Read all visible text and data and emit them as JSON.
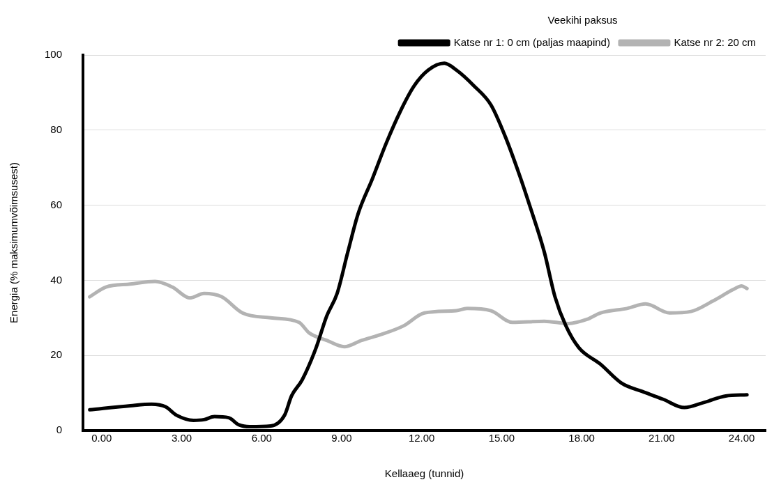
{
  "chart_data": {
    "type": "line",
    "xlabel": "Kellaaeg (tunnid)",
    "ylabel": "Energia (% maksimumvõimsusest)",
    "legend_title": "Veekihi paksus",
    "legend": "top right",
    "grid": "y",
    "marker": "none",
    "line_style": "solid",
    "xlim": [
      -0.7,
      24.9
    ],
    "ylim": [
      0,
      100
    ],
    "xticks": [
      {
        "value": 0,
        "label": "0.00"
      },
      {
        "value": 3,
        "label": "3.00"
      },
      {
        "value": 6,
        "label": "6.00"
      },
      {
        "value": 9,
        "label": "9.00"
      },
      {
        "value": 12,
        "label": "12.00"
      },
      {
        "value": 15,
        "label": "15.00"
      },
      {
        "value": 18,
        "label": "18.00"
      },
      {
        "value": 21,
        "label": "21.00"
      },
      {
        "value": 24,
        "label": "24.00"
      }
    ],
    "yticks": [
      0,
      20,
      40,
      60,
      80,
      100
    ],
    "series": [
      {
        "name": "Katse nr 1: 0 cm (paljas maapind)",
        "color": "#000000",
        "x": [
          -0.45,
          1.08,
          1.87,
          2.4,
          2.8,
          3.44,
          3.84,
          4.23,
          4.76,
          5.15,
          5.55,
          6.34,
          6.86,
          7.12,
          7.52,
          8.04,
          8.44,
          8.83,
          9.23,
          9.62,
          10.15,
          10.67,
          11.2,
          11.72,
          12.25,
          12.85,
          13.3,
          13.96,
          14.6,
          15.14,
          15.67,
          16.07,
          16.6,
          17.0,
          17.4,
          17.9,
          18.7,
          19.5,
          20.27,
          21.06,
          21.85,
          22.6,
          23.4,
          24.2
        ],
        "values": [
          5.5,
          6.6,
          7.0,
          6.3,
          4.1,
          2.7,
          2.9,
          3.7,
          3.4,
          1.5,
          1.0,
          1.2,
          4.1,
          9.2,
          13.5,
          22,
          30.5,
          36.5,
          47.5,
          57.8,
          67,
          76.5,
          85,
          91.8,
          96,
          97.8,
          96,
          91.8,
          86.7,
          78.2,
          68,
          59.5,
          47.5,
          35.6,
          28,
          22,
          17.7,
          12.6,
          10.4,
          8.3,
          6.1,
          7.5,
          9.2,
          9.5
        ]
      },
      {
        "name": "Katse nr 2: 20 cm",
        "color": "#b3b3b3",
        "x": [
          -0.45,
          0.16,
          1.08,
          2.0,
          2.65,
          3.31,
          3.84,
          4.5,
          5.28,
          6.34,
          7.4,
          7.78,
          8.44,
          9.1,
          9.75,
          10.54,
          11.33,
          12.1,
          13.3,
          13.7,
          14.6,
          15.4,
          16.6,
          17.5,
          18.2,
          18.7,
          19.7,
          20.4,
          21.3,
          22.1,
          22.9,
          23.7,
          24.0,
          24.2
        ],
        "values": [
          35.6,
          38.2,
          39,
          39.7,
          38.2,
          35.3,
          36.5,
          35.6,
          31.3,
          30,
          28.8,
          26,
          24,
          22.3,
          24,
          25.7,
          27.9,
          31.3,
          31.9,
          32.5,
          31.9,
          28.8,
          29.1,
          28.5,
          29.6,
          31.3,
          32.5,
          33.7,
          31.3,
          31.7,
          34.4,
          37.6,
          38.5,
          37.8
        ]
      }
    ]
  }
}
